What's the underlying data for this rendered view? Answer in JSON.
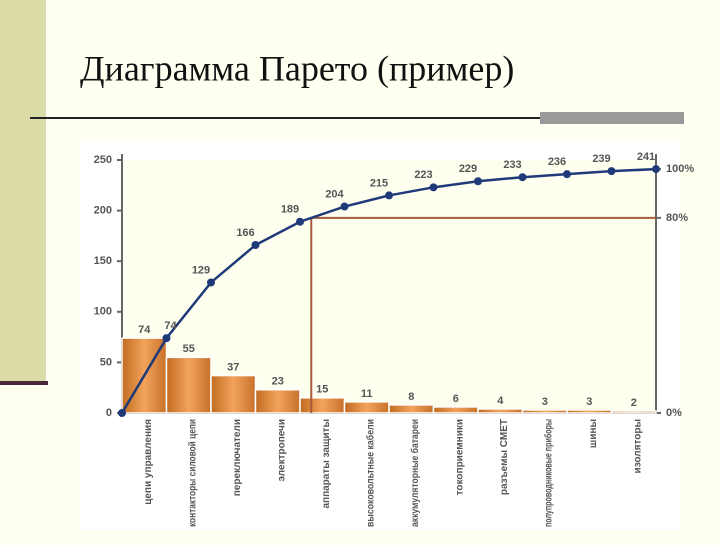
{
  "title": "Диаграмма Парето (пример)",
  "chart_data": {
    "type": "pareto",
    "categories": [
      "цепи управления",
      "контакторы силовой цепи",
      "переключатели",
      "электропечи",
      "аппараты защиты",
      "высоковольтные кабели",
      "аккумуляторные батареи",
      "токоприемники",
      "разъемы СМЕТ",
      "полупроводниковые приборы",
      "шины",
      "изоляторы"
    ],
    "values": [
      74,
      55,
      37,
      23,
      15,
      11,
      8,
      6,
      4,
      3,
      3,
      2
    ],
    "color": "#e0893a",
    "cumulative_values": [
      74,
      129,
      166,
      189,
      204,
      215,
      223,
      229,
      233,
      236,
      239,
      241
    ],
    "line_color": "#1f3a78",
    "ylim": [
      0,
      250
    ],
    "yticks": [
      0,
      50,
      100,
      150,
      200,
      250
    ],
    "y2lim": [
      0,
      103.73
    ],
    "y2ticks": [
      {
        "value": 0,
        "label": "0%"
      },
      {
        "value": 80,
        "label": "80%"
      },
      {
        "value": 100,
        "label": "100%"
      }
    ],
    "reference_line": 80,
    "reference_color": "#a85a3a"
  }
}
